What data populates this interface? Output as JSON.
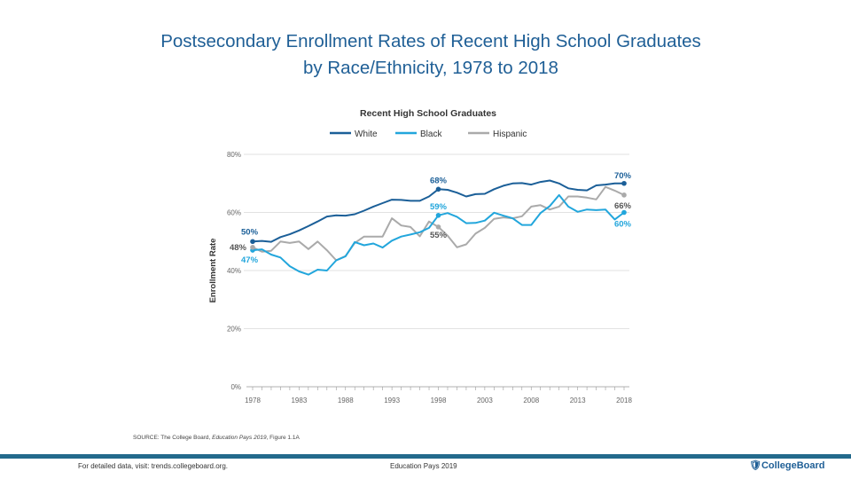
{
  "title_line1": "Postsecondary Enrollment Rates of Recent High School Graduates",
  "title_line2": "by Race/Ethnicity, 1978 to 2018",
  "chart_data": {
    "type": "line",
    "title": "Recent High School Graduates",
    "ylabel": "Enrollment Rate",
    "xlabel": "",
    "ylim": [
      0,
      80
    ],
    "xlim": [
      1978,
      2018
    ],
    "y_ticks": [
      "0%",
      "20%",
      "40%",
      "60%",
      "80%"
    ],
    "x_ticks": [
      "1978",
      "1983",
      "1988",
      "1993",
      "1998",
      "2003",
      "2008",
      "2013",
      "2018"
    ],
    "grid": true,
    "legend_position": "top",
    "x": [
      1978,
      1979,
      1980,
      1981,
      1982,
      1983,
      1984,
      1985,
      1986,
      1987,
      1988,
      1989,
      1990,
      1991,
      1992,
      1993,
      1994,
      1995,
      1996,
      1997,
      1998,
      1999,
      2000,
      2001,
      2002,
      2003,
      2004,
      2005,
      2006,
      2007,
      2008,
      2009,
      2010,
      2011,
      2012,
      2013,
      2014,
      2015,
      2016,
      2017,
      2018
    ],
    "series": [
      {
        "name": "White",
        "color": "#1b5f98",
        "values": [
          50,
          50.2,
          49.9,
          51.5,
          52.5,
          53.8,
          55.3,
          56.9,
          58.6,
          59,
          58.9,
          59.4,
          60.6,
          62,
          63.2,
          64.4,
          64.3,
          64,
          64,
          65.5,
          68,
          67.8,
          66.8,
          65.5,
          66.3,
          66.4,
          68,
          69.2,
          70,
          70.1,
          69.6,
          70.5,
          71,
          70,
          68.3,
          67.8,
          67.6,
          69.3,
          69.6,
          70,
          70
        ]
      },
      {
        "name": "Black",
        "color": "#22a6dc",
        "values": [
          47,
          47.3,
          45.5,
          44.5,
          41.5,
          39.7,
          38.6,
          40.3,
          40,
          43.5,
          44.9,
          49.8,
          48.7,
          49.3,
          47.9,
          50.3,
          51.7,
          52.4,
          53.2,
          54.7,
          59,
          59.8,
          58.5,
          56.3,
          56.4,
          57.2,
          59.9,
          58.9,
          58,
          55.7,
          55.7,
          59.8,
          62.2,
          66,
          62,
          60.2,
          61,
          60.8,
          61,
          57.6,
          60
        ]
      },
      {
        "name": "Hispanic",
        "color": "#aaaaaa",
        "values": [
          48,
          46.5,
          46.8,
          50,
          49.5,
          50,
          47.4,
          50,
          47,
          43.5,
          45,
          49.5,
          51.7,
          51.7,
          51.7,
          58,
          55.5,
          55,
          51.8,
          56.9,
          55,
          52,
          48,
          49,
          52.7,
          54.7,
          57.8,
          58.3,
          58,
          58.7,
          62,
          62.5,
          61,
          62,
          65.5,
          65.5,
          65.1,
          64.5,
          68.8,
          67.5,
          66
        ]
      }
    ],
    "annotations": [
      {
        "series": "White",
        "x": 1978,
        "text": "50%"
      },
      {
        "series": "Black",
        "x": 1978,
        "text": "47%"
      },
      {
        "series": "Hispanic",
        "x": 1978,
        "text": "48%"
      },
      {
        "series": "White",
        "x": 1998,
        "text": "68%"
      },
      {
        "series": "Black",
        "x": 1998,
        "text": "59%"
      },
      {
        "series": "Hispanic",
        "x": 1998,
        "text": "55%"
      },
      {
        "series": "White",
        "x": 2018,
        "text": "70%"
      },
      {
        "series": "Hispanic",
        "x": 2018,
        "text": "66%"
      },
      {
        "series": "Black",
        "x": 2018,
        "text": "60%"
      }
    ]
  },
  "source_prefix": "SOURCE: The College Board, ",
  "source_italic": "Education Pays 2019",
  "source_suffix": ", Figure 1.1A",
  "footer_left": "For detailed data, visit: trends.collegeboard.org.",
  "footer_center": "Education Pays 2019",
  "logo_text": "CollegeBoard",
  "footer_bar_color": "#236a8c"
}
